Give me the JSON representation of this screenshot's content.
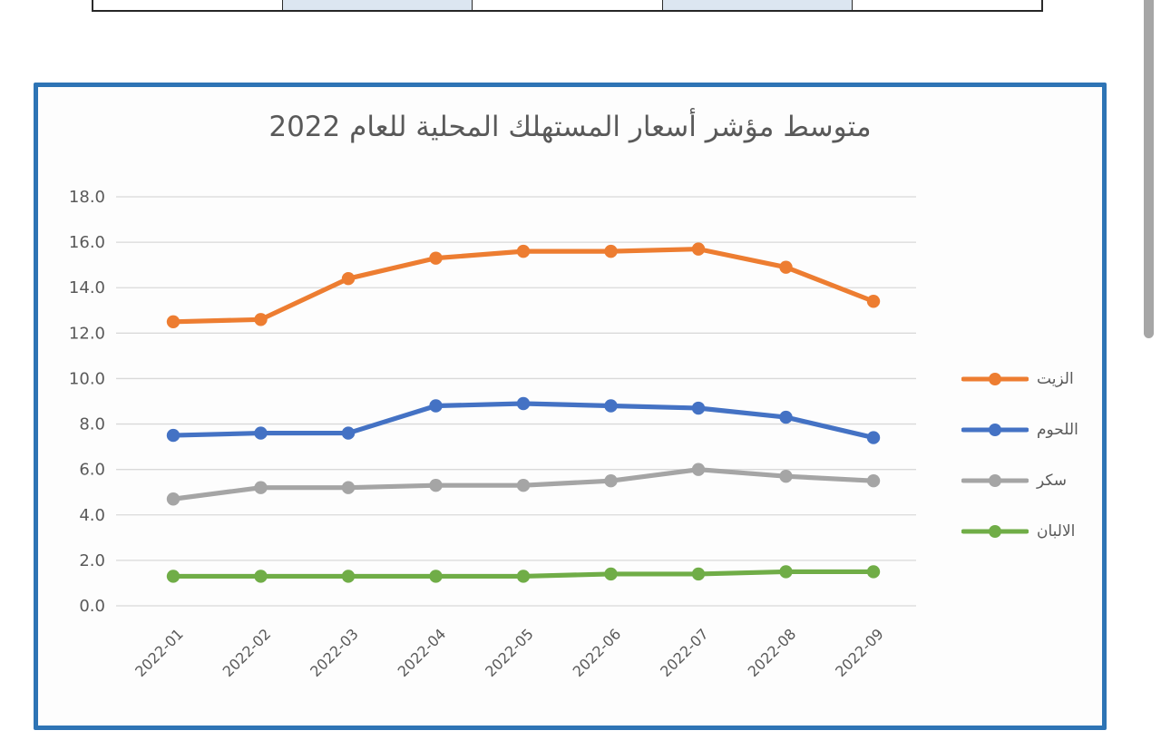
{
  "colors": {
    "frame_border": "#2e74b5",
    "gridline": "#d9d9d9",
    "axis_text": "#595959",
    "title_text": "#595959",
    "scrollbar": "#a6a6a6",
    "table_highlight_fill": "#dce6f1",
    "table_plain_fill": "#ffffff",
    "table_border": "#2b2b2b"
  },
  "table_fragment": {
    "cell_fills": [
      "#ffffff",
      "#dce6f1",
      "#ffffff",
      "#dce6f1",
      "#ffffff"
    ]
  },
  "chart_data": {
    "type": "line",
    "title": "متوسط مؤشر أسعار المستهلك المحلية للعام 2022",
    "categories": [
      "2022-01",
      "2022-02",
      "2022-03",
      "2022-04",
      "2022-05",
      "2022-06",
      "2022-07",
      "2022-08",
      "2022-09"
    ],
    "series": [
      {
        "name": "الزيت",
        "color": "#ED7D31",
        "values": [
          12.5,
          12.6,
          14.4,
          15.3,
          15.6,
          15.6,
          15.7,
          14.9,
          13.4
        ]
      },
      {
        "name": "اللحوم",
        "color": "#4472C4",
        "values": [
          7.5,
          7.6,
          7.6,
          8.8,
          8.9,
          8.8,
          8.7,
          8.3,
          7.4
        ]
      },
      {
        "name": "سكر",
        "color": "#A5A5A5",
        "values": [
          4.7,
          5.2,
          5.2,
          5.3,
          5.3,
          5.5,
          6.0,
          5.7,
          5.5
        ]
      },
      {
        "name": "الالبان",
        "color": "#70AD47",
        "values": [
          1.3,
          1.3,
          1.3,
          1.3,
          1.3,
          1.4,
          1.4,
          1.5,
          1.5
        ]
      }
    ],
    "xlabel": "",
    "ylabel": "",
    "ylim": [
      0,
      18
    ],
    "ytick_step": 2,
    "ytick_labels": [
      "0.0",
      "2.0",
      "4.0",
      "6.0",
      "8.0",
      "10.0",
      "12.0",
      "14.0",
      "16.0",
      "18.0"
    ],
    "grid": true,
    "legend_position": "right",
    "marker": "circle"
  }
}
